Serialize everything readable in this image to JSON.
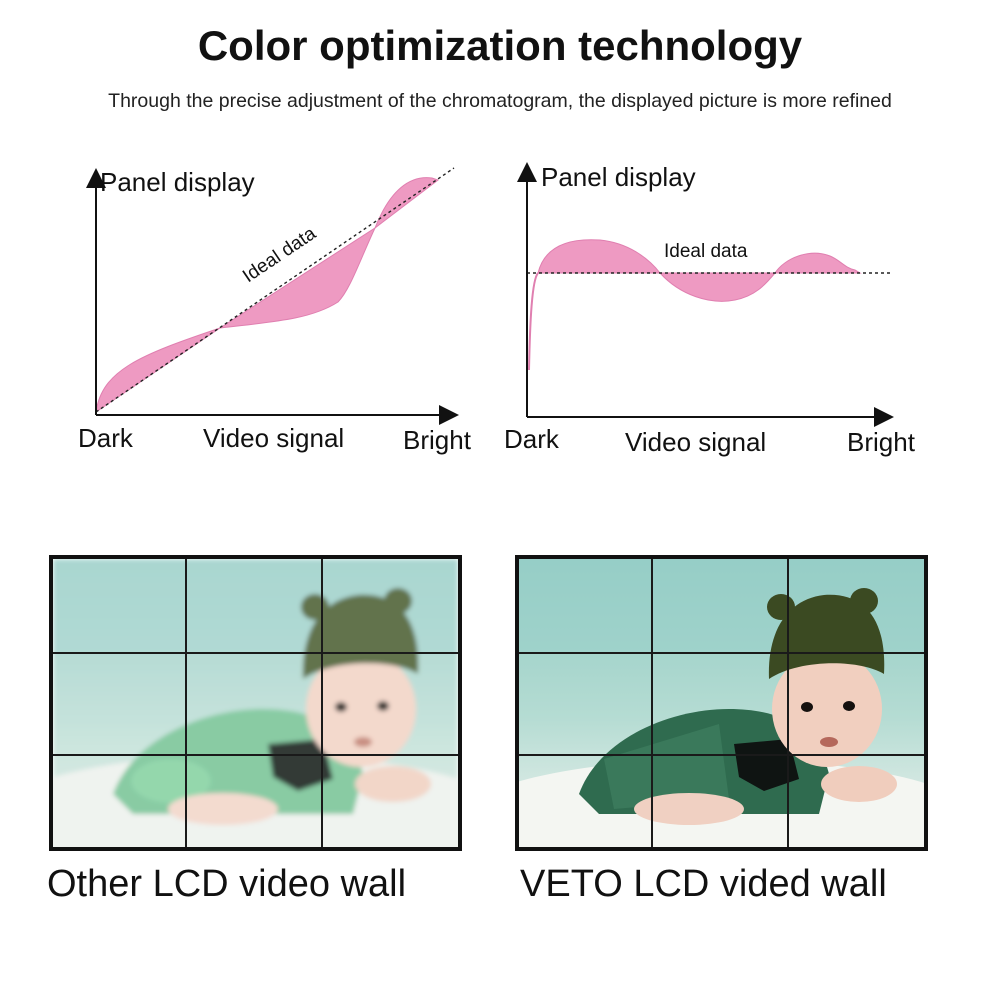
{
  "header": {
    "title": "Color optimization technology",
    "subtitle": "Through the precise adjustment of the chromatogram, the displayed picture is more refined"
  },
  "charts": [
    {
      "y_label": "Panel display",
      "x_label": "Video signal",
      "x_left": "Dark",
      "x_right": "Bright",
      "annotation": "Ideal data"
    },
    {
      "y_label": "Panel display",
      "x_label": "Video signal",
      "x_left": "Dark",
      "x_right": "Bright",
      "annotation": "Ideal data"
    }
  ],
  "comparison": {
    "left_caption": "Other LCD video wall",
    "right_caption": "VETO LCD vided wall"
  },
  "colors": {
    "curve_fill": "#ee9ac2",
    "text": "#111111",
    "frame": "#111111"
  }
}
